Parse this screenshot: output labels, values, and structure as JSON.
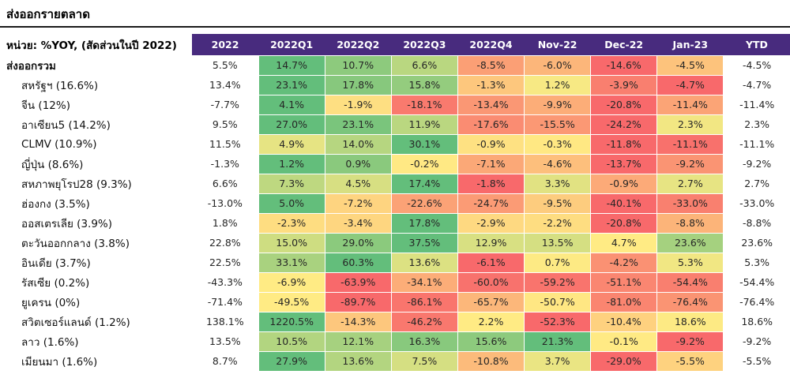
{
  "chart_data": {
    "type": "heatmap",
    "title": "ส่งออกรายตลาด",
    "unit_label": "หน่วย: %YOY, (สัดส่วนในปี 2022)",
    "value_suffix": "%",
    "columns": [
      "2022",
      "2022Q1",
      "2022Q2",
      "2022Q3",
      "2022Q4",
      "Nov-22",
      "Dec-22",
      "Jan-23",
      "YTD"
    ],
    "heatmap_column_indexes": [
      1,
      2,
      3,
      4,
      5,
      6,
      7
    ],
    "color_scale": {
      "scope": "per-row",
      "mid_anchor_value": 0,
      "min_color": "#F8696B",
      "mid_color": "#FFEB84",
      "max_color": "#63BE7B"
    },
    "colors": {
      "header_bg": "#482B7E",
      "header_text": "#FFFFFF",
      "cell_text": "#262626",
      "rule": "#1A1A1A"
    },
    "rows": [
      {
        "label": "ส่งออกรวม",
        "bold": true,
        "values": [
          5.5,
          14.7,
          10.7,
          6.6,
          -8.5,
          -6.0,
          -14.6,
          -4.5,
          -4.5
        ]
      },
      {
        "label": "สหรัฐฯ (16.6%)",
        "bold": false,
        "values": [
          13.4,
          23.1,
          17.8,
          15.8,
          -1.3,
          1.2,
          -3.9,
          -4.7,
          -4.7
        ]
      },
      {
        "label": "จีน (12%)",
        "bold": false,
        "values": [
          -7.7,
          4.1,
          -1.9,
          -18.1,
          -13.4,
          -9.9,
          -20.8,
          -11.4,
          -11.4
        ]
      },
      {
        "label": "อาเซียน5 (14.2%)",
        "bold": false,
        "values": [
          9.5,
          27.0,
          23.1,
          11.9,
          -17.6,
          -15.5,
          -24.2,
          2.3,
          2.3
        ]
      },
      {
        "label": "CLMV (10.9%)",
        "bold": false,
        "values": [
          11.5,
          4.9,
          14.0,
          30.1,
          -0.9,
          -0.3,
          -11.8,
          -11.1,
          -11.1
        ]
      },
      {
        "label": "ญี่ปุ่น (8.6%)",
        "bold": false,
        "values": [
          -1.3,
          1.2,
          0.9,
          -0.2,
          -7.1,
          -4.6,
          -13.7,
          -9.2,
          -9.2
        ]
      },
      {
        "label": "สหภาพยุโรป28 (9.3%)",
        "bold": false,
        "values": [
          6.6,
          7.3,
          4.5,
          17.4,
          -1.8,
          3.3,
          -0.9,
          2.7,
          2.7
        ]
      },
      {
        "label": "ฮ่องกง (3.5%)",
        "bold": false,
        "values": [
          -13.0,
          5.0,
          -7.2,
          -22.6,
          -24.7,
          -9.5,
          -40.1,
          -33.0,
          -33.0
        ]
      },
      {
        "label": "ออสเตรเลีย (3.9%)",
        "bold": false,
        "values": [
          1.8,
          -2.3,
          -3.4,
          17.8,
          -2.9,
          -2.2,
          -20.8,
          -8.8,
          -8.8
        ]
      },
      {
        "label": "ตะวันออกกลาง (3.8%)",
        "bold": false,
        "values": [
          22.8,
          15.0,
          29.0,
          37.5,
          12.9,
          13.5,
          4.7,
          23.6,
          23.6
        ]
      },
      {
        "label": "อินเดีย (3.7%)",
        "bold": false,
        "values": [
          22.5,
          33.1,
          60.3,
          13.6,
          -6.1,
          0.7,
          -4.2,
          5.3,
          5.3
        ]
      },
      {
        "label": "รัสเซีย (0.2%)",
        "bold": false,
        "values": [
          -43.3,
          -6.9,
          -63.9,
          -34.1,
          -60.0,
          -59.2,
          -51.1,
          -54.4,
          -54.4
        ]
      },
      {
        "label": "ยูเครน (0%)",
        "bold": false,
        "values": [
          -71.4,
          -49.5,
          -89.7,
          -86.1,
          -65.7,
          -50.7,
          -81.0,
          -76.4,
          -76.4
        ]
      },
      {
        "label": "สวิตเซอร์แลนด์ (1.2%)",
        "bold": false,
        "values": [
          138.1,
          1220.5,
          -14.3,
          -46.2,
          2.2,
          -52.3,
          -10.4,
          18.6,
          18.6
        ]
      },
      {
        "label": "ลาว (1.6%)",
        "bold": false,
        "values": [
          13.5,
          10.5,
          12.1,
          16.3,
          15.6,
          21.3,
          -0.1,
          -9.2,
          -9.2
        ]
      },
      {
        "label": "เมียนมา (1.6%)",
        "bold": false,
        "values": [
          8.7,
          27.9,
          13.6,
          7.5,
          -10.8,
          3.7,
          -29.0,
          -5.5,
          -5.5
        ]
      }
    ]
  }
}
